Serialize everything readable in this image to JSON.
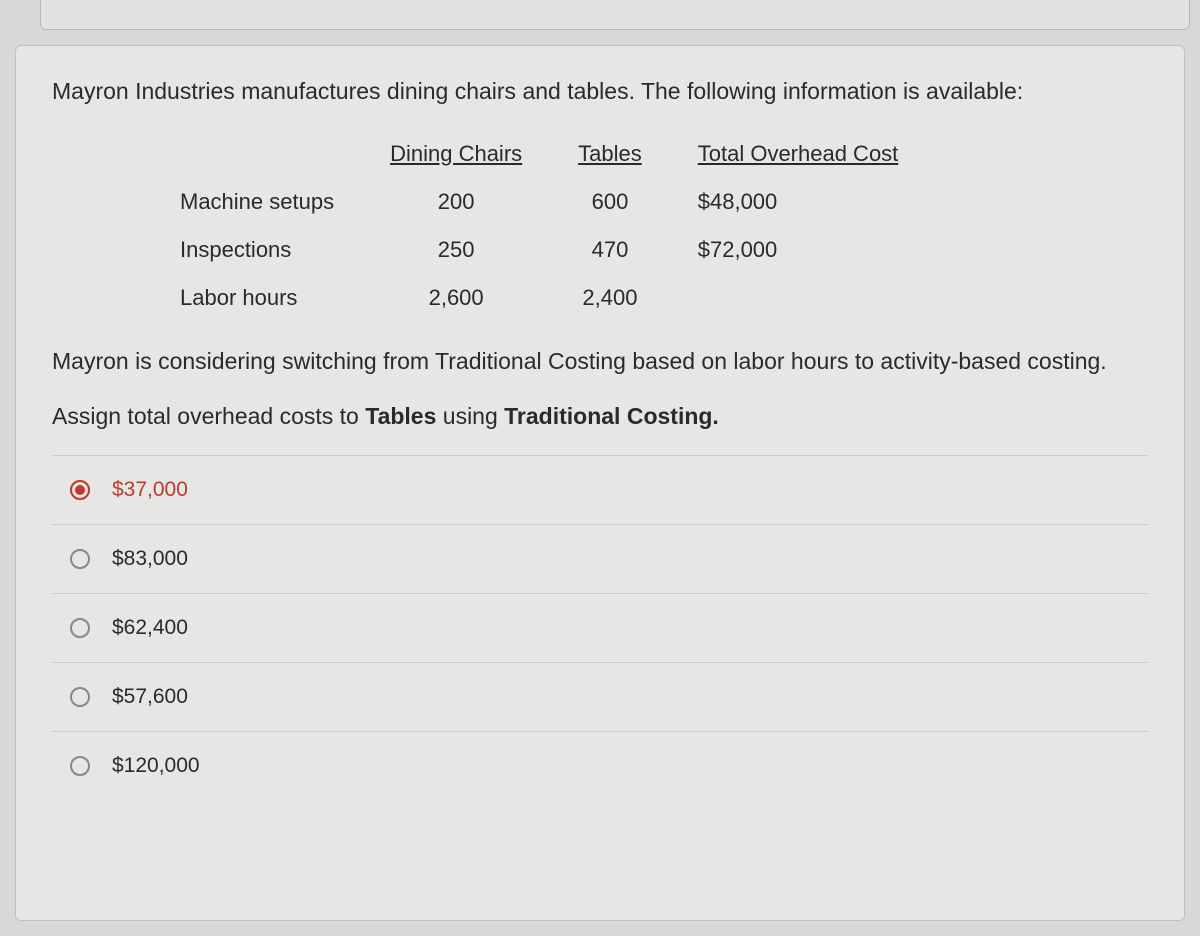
{
  "question": {
    "intro": "Mayron Industries manufactures dining chairs and tables. The following information is available:",
    "table": {
      "headers": [
        "",
        "Dining Chairs",
        "Tables",
        "Total Overhead Cost"
      ],
      "rows": [
        {
          "label": "Machine setups",
          "c1": "200",
          "c2": "600",
          "c3": "$48,000"
        },
        {
          "label": "Inspections",
          "c1": "250",
          "c2": "470",
          "c3": "$72,000"
        },
        {
          "label": "Labor hours",
          "c1": "2,600",
          "c2": "2,400",
          "c3": ""
        }
      ]
    },
    "para2": "Mayron is considering switching from Traditional Costing based on labor hours to activity-based costing.",
    "prompt_pre": "Assign total overhead costs to ",
    "prompt_b1": "Tables",
    "prompt_mid": " using ",
    "prompt_b2": "Traditional Costing.",
    "options": [
      {
        "label": "$37,000",
        "selected": true
      },
      {
        "label": "$83,000",
        "selected": false
      },
      {
        "label": "$62,400",
        "selected": false
      },
      {
        "label": "$57,600",
        "selected": false
      },
      {
        "label": "$120,000",
        "selected": false
      }
    ]
  },
  "style": {
    "background_color": "#d8d8d6",
    "card_background": "#e6e6e4",
    "text_color": "#2a2a2a",
    "border_color": "#c0c0be",
    "divider_color": "#cacac8",
    "accent_color": "#c03a2b",
    "radio_border": "#888888",
    "body_fontsize": 23,
    "option_fontsize": 21
  }
}
